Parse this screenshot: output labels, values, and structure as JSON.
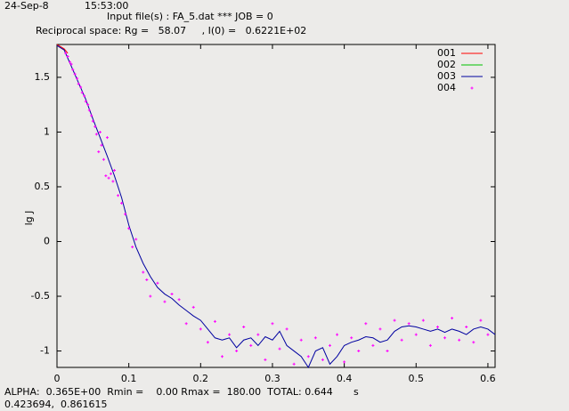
{
  "chart_data": {
    "type": "line",
    "date": "24-Sep-8",
    "time": "15:53:00",
    "title": "Input file(s) : FA_5.dat *** JOB = 0",
    "subtitle": "Reciprocal space: Rg =   58.07     , I(0) =   0.6221E+02",
    "footer": "ALPHA:  0.365E+00  Rmin =    0.00 Rmax =  180.00  TOTAL: 0.644",
    "coordinates": "0.423694,  0.861615",
    "x_label": "s",
    "y_label": "lg J",
    "xlim": [
      0,
      0.61
    ],
    "ylim": [
      -1.15,
      1.8
    ],
    "xticks": [
      0,
      0.1,
      0.2,
      0.3,
      0.4,
      0.5,
      0.6
    ],
    "yticks": [
      -1,
      -0.5,
      0,
      0.5,
      1,
      1.5
    ],
    "grid": false,
    "legend": "upper right",
    "series": [
      {
        "name": "001",
        "color": "#ff0000",
        "style": "lines",
        "x": [
          0,
          0.005,
          0.01,
          0.015
        ],
        "values": [
          1.8,
          1.78,
          1.76,
          1.72
        ]
      },
      {
        "name": "002",
        "color": "#00c000",
        "style": "lines",
        "x": [],
        "values": []
      },
      {
        "name": "003",
        "color": "#0000a0",
        "style": "lines",
        "x": [
          0,
          0.01,
          0.02,
          0.03,
          0.04,
          0.05,
          0.06,
          0.07,
          0.08,
          0.09,
          0.1,
          0.11,
          0.12,
          0.13,
          0.14,
          0.15,
          0.16,
          0.17,
          0.18,
          0.19,
          0.2,
          0.21,
          0.22,
          0.23,
          0.24,
          0.25,
          0.26,
          0.27,
          0.28,
          0.29,
          0.3,
          0.31,
          0.32,
          0.33,
          0.34,
          0.35,
          0.36,
          0.37,
          0.38,
          0.39,
          0.4,
          0.41,
          0.42,
          0.43,
          0.44,
          0.45,
          0.46,
          0.47,
          0.48,
          0.49,
          0.5,
          0.51,
          0.52,
          0.53,
          0.54,
          0.55,
          0.56,
          0.57,
          0.58,
          0.59,
          0.6,
          0.61
        ],
        "values": [
          1.79,
          1.75,
          1.6,
          1.45,
          1.3,
          1.12,
          0.95,
          0.78,
          0.6,
          0.4,
          0.15,
          -0.05,
          -0.2,
          -0.32,
          -0.42,
          -0.48,
          -0.52,
          -0.58,
          -0.63,
          -0.68,
          -0.72,
          -0.8,
          -0.88,
          -0.9,
          -0.88,
          -0.97,
          -0.9,
          -0.88,
          -0.95,
          -0.87,
          -0.9,
          -0.82,
          -0.95,
          -1.0,
          -1.05,
          -1.15,
          -1.0,
          -0.97,
          -1.12,
          -1.05,
          -0.95,
          -0.92,
          -0.9,
          -0.87,
          -0.88,
          -0.92,
          -0.9,
          -0.82,
          -0.78,
          -0.77,
          -0.78,
          -0.8,
          -0.82,
          -0.8,
          -0.83,
          -0.8,
          -0.82,
          -0.85,
          -0.8,
          -0.78,
          -0.8,
          -0.85
        ]
      },
      {
        "name": "004",
        "color": "#ff00ff",
        "style": "points",
        "x": [
          0.012,
          0.015,
          0.018,
          0.02,
          0.022,
          0.025,
          0.028,
          0.03,
          0.033,
          0.035,
          0.038,
          0.04,
          0.043,
          0.045,
          0.048,
          0.05,
          0.053,
          0.055,
          0.058,
          0.06,
          0.062,
          0.065,
          0.068,
          0.07,
          0.072,
          0.075,
          0.078,
          0.08,
          0.085,
          0.09,
          0.095,
          0.1,
          0.105,
          0.11,
          0.12,
          0.125,
          0.13,
          0.14,
          0.15,
          0.16,
          0.17,
          0.18,
          0.19,
          0.2,
          0.21,
          0.22,
          0.23,
          0.24,
          0.25,
          0.26,
          0.27,
          0.28,
          0.29,
          0.3,
          0.31,
          0.32,
          0.33,
          0.34,
          0.35,
          0.36,
          0.37,
          0.38,
          0.39,
          0.4,
          0.41,
          0.42,
          0.43,
          0.44,
          0.45,
          0.46,
          0.47,
          0.48,
          0.49,
          0.5,
          0.51,
          0.52,
          0.53,
          0.54,
          0.55,
          0.56,
          0.57,
          0.58,
          0.59,
          0.6
        ],
        "values": [
          1.72,
          1.69,
          1.64,
          1.62,
          1.57,
          1.53,
          1.49,
          1.44,
          1.41,
          1.36,
          1.33,
          1.28,
          1.25,
          1.2,
          1.15,
          1.1,
          1.05,
          0.98,
          0.82,
          1.0,
          0.88,
          0.75,
          0.6,
          0.95,
          0.58,
          0.62,
          0.55,
          0.65,
          0.42,
          0.35,
          0.25,
          0.12,
          -0.05,
          0.02,
          -0.28,
          -0.35,
          -0.5,
          -0.38,
          -0.55,
          -0.48,
          -0.53,
          -0.75,
          -0.6,
          -0.8,
          -0.92,
          -0.73,
          -1.05,
          -0.85,
          -1.0,
          -0.78,
          -0.95,
          -0.85,
          -1.08,
          -0.75,
          -0.98,
          -0.8,
          -1.12,
          -0.9,
          -1.05,
          -0.88,
          -1.08,
          -0.95,
          -0.85,
          -1.1,
          -0.88,
          -1.0,
          -0.75,
          -0.95,
          -0.8,
          -1.0,
          -0.72,
          -0.9,
          -0.75,
          -0.85,
          -0.72,
          -0.95,
          -0.78,
          -0.88,
          -0.7,
          -0.9,
          -0.78,
          -0.92,
          -0.72,
          -0.85
        ]
      }
    ]
  }
}
